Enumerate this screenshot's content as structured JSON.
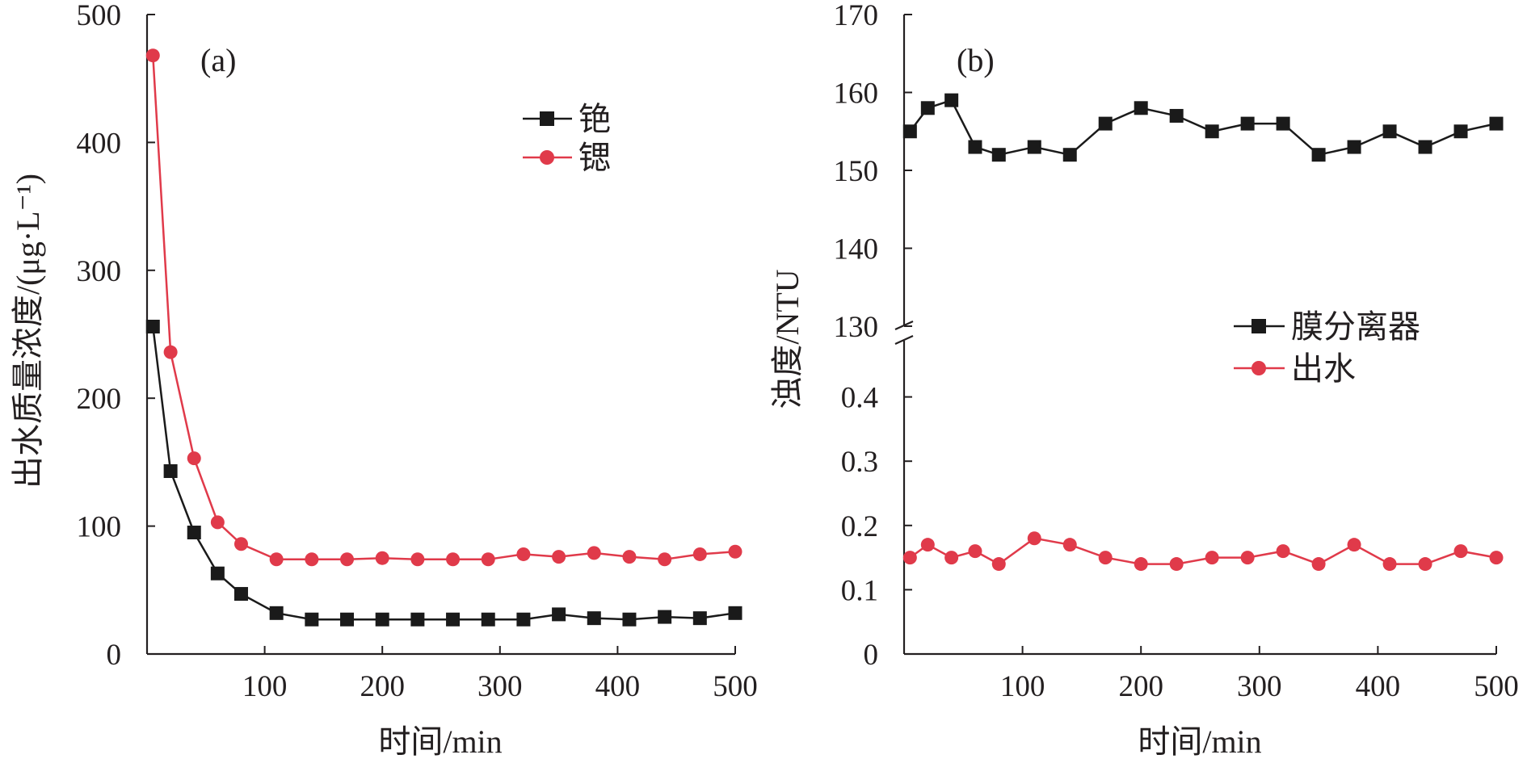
{
  "chart_data": [
    {
      "type": "line",
      "panel_label": "(a)",
      "xlabel": "时间/min",
      "ylabel": "出水质量浓度/(μg·L⁻¹)",
      "xlim": [
        0,
        500
      ],
      "ylim": [
        0,
        500
      ],
      "xticks": [
        100,
        200,
        300,
        400,
        500
      ],
      "yticks": [
        0,
        100,
        200,
        300,
        400,
        500
      ],
      "x": [
        5,
        20,
        40,
        60,
        80,
        110,
        140,
        170,
        200,
        230,
        260,
        290,
        320,
        350,
        380,
        410,
        440,
        470,
        500
      ],
      "series": [
        {
          "name": "铯",
          "color": "#1a1a1a",
          "marker": "square",
          "values": [
            256,
            143,
            95,
            63,
            47,
            32,
            27,
            27,
            27,
            27,
            27,
            27,
            27,
            31,
            28,
            27,
            29,
            28,
            32
          ]
        },
        {
          "name": "锶",
          "color": "#e03a4a",
          "marker": "circle",
          "values": [
            468,
            236,
            153,
            103,
            86,
            74,
            74,
            74,
            75,
            74,
            74,
            74,
            78,
            76,
            79,
            76,
            74,
            78,
            80
          ]
        }
      ],
      "legend_position": "top-right",
      "grid": false
    },
    {
      "type": "line",
      "panel_label": "(b)",
      "xlabel": "时间/min",
      "ylabel": "浊度/NTU",
      "xlim": [
        0,
        500
      ],
      "axis_break": true,
      "ylim_lower": [
        0,
        0.5
      ],
      "ylim_upper": [
        130,
        170
      ],
      "xticks": [
        100,
        200,
        300,
        400,
        500
      ],
      "yticks_lower": [
        "0",
        "0.1",
        "0.2",
        "0.3",
        "0.4"
      ],
      "yticks_upper": [
        "130",
        "140",
        "150",
        "160",
        "170"
      ],
      "x": [
        5,
        20,
        40,
        60,
        80,
        110,
        140,
        170,
        200,
        230,
        260,
        290,
        320,
        350,
        380,
        410,
        440,
        470,
        500
      ],
      "series": [
        {
          "name": "膜分离器",
          "color": "#1a1a1a",
          "marker": "square",
          "values": [
            155,
            158,
            159,
            153,
            152,
            153,
            152,
            156,
            158,
            157,
            155,
            156,
            156,
            152,
            153,
            155,
            153,
            155,
            156
          ]
        },
        {
          "name": "出水",
          "color": "#e03a4a",
          "marker": "circle",
          "values": [
            0.15,
            0.17,
            0.15,
            0.16,
            0.14,
            0.18,
            0.17,
            0.15,
            0.14,
            0.14,
            0.15,
            0.15,
            0.16,
            0.14,
            0.17,
            0.14,
            0.14,
            0.16,
            0.15
          ]
        }
      ],
      "legend_position": "middle-right",
      "grid": false
    }
  ]
}
